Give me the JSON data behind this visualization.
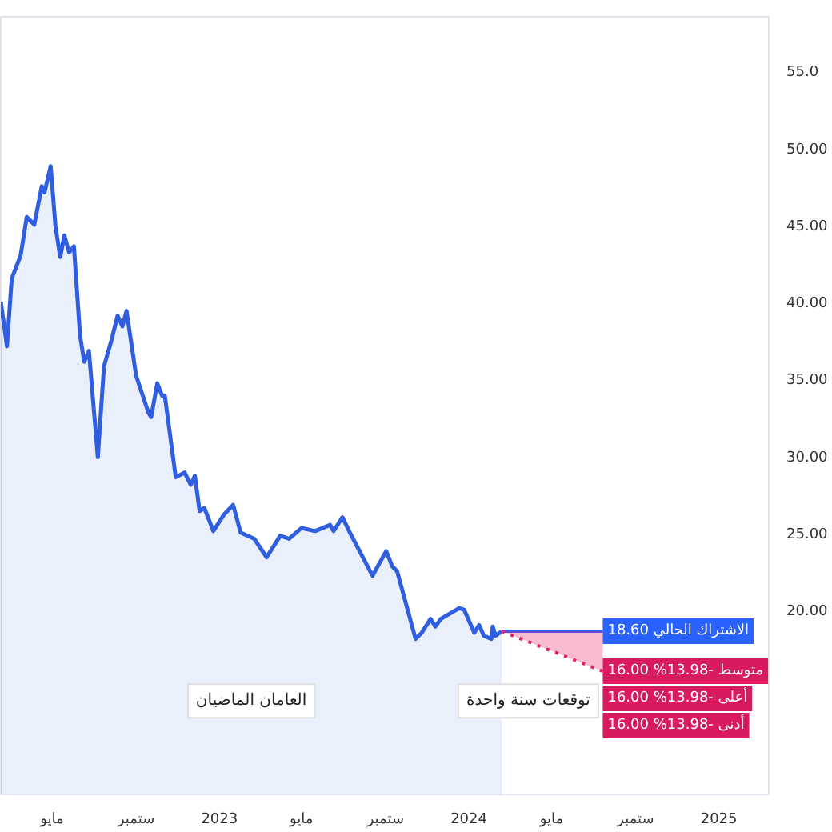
{
  "chart_data": {
    "type": "area",
    "x": [
      "2022-02-15",
      "2022-02-24",
      "2022-03-03",
      "2022-03-16",
      "2022-03-25",
      "2022-04-05",
      "2022-04-16",
      "2022-04-20",
      "2022-04-29",
      "2022-05-06",
      "2022-05-13",
      "2022-05-19",
      "2022-05-26",
      "2022-06-02",
      "2022-06-11",
      "2022-06-17",
      "2022-06-24",
      "2022-07-07",
      "2022-07-16",
      "2022-07-27",
      "2022-08-05",
      "2022-08-12",
      "2022-08-18",
      "2022-09-01",
      "2022-09-19",
      "2022-09-23",
      "2022-10-02",
      "2022-10-09",
      "2022-10-13",
      "2022-10-29",
      "2022-11-11",
      "2022-11-20",
      "2022-11-26",
      "2022-12-03",
      "2022-12-10",
      "2022-12-23",
      "2023-01-08",
      "2023-01-21",
      "2023-02-01",
      "2023-02-21",
      "2023-03-11",
      "2023-03-31",
      "2023-04-13",
      "2023-05-01",
      "2023-05-21",
      "2023-06-12",
      "2023-06-17",
      "2023-06-30",
      "2023-07-11",
      "2023-08-13",
      "2023-09-02",
      "2023-09-11",
      "2023-09-18",
      "2023-10-15",
      "2023-10-24",
      "2023-11-06",
      "2023-11-13",
      "2023-11-21",
      "2023-12-18",
      "2023-12-25",
      "2024-01-09",
      "2024-01-16",
      "2024-01-23",
      "2024-02-03",
      "2024-02-05",
      "2024-02-09",
      "2024-02-18"
    ],
    "series": [
      {
        "color": "#2f5fe0",
        "values": [
          40.0,
          37.1,
          41.5,
          43.0,
          45.5,
          45.0,
          47.5,
          47.1,
          48.8,
          44.9,
          42.9,
          44.3,
          43.2,
          43.6,
          37.8,
          36.1,
          36.8,
          29.9,
          35.8,
          37.5,
          39.1,
          38.4,
          39.4,
          35.2,
          32.8,
          32.5,
          34.7,
          33.9,
          33.9,
          28.6,
          28.9,
          28.1,
          28.7,
          26.4,
          26.6,
          25.1,
          26.2,
          26.8,
          25.0,
          24.6,
          23.4,
          24.8,
          24.6,
          25.3,
          25.1,
          25.5,
          25.1,
          26.0,
          25.0,
          22.2,
          23.8,
          22.8,
          22.5,
          18.1,
          18.5,
          19.4,
          18.9,
          19.4,
          20.1,
          20.0,
          18.5,
          19.0,
          18.3,
          18.1,
          18.9,
          18.3,
          18.6
        ]
      },
      {
        "type": "line",
        "color": "#2962ff",
        "x": [
          "2024-02-18",
          "2024-07-15"
        ],
        "values": [
          18.6,
          18.6
        ]
      },
      {
        "type": "line",
        "color": "#e91e63",
        "line_style": "dotted",
        "x": [
          "2024-02-18",
          "2024-07-15"
        ],
        "values": [
          18.6,
          16.0
        ],
        "lower": [
          18.6,
          16.0
        ],
        "upper": [
          18.6,
          18.6
        ]
      }
    ],
    "xlim": [
      "2022-02-15",
      "2025-03-15"
    ],
    "xticks": [
      {
        "value": "2022-05-01",
        "label": "مايو"
      },
      {
        "value": "2022-09-01",
        "label": "ستمبر"
      },
      {
        "value": "2023-01-01",
        "label": "2023"
      },
      {
        "value": "2023-05-01",
        "label": "مايو"
      },
      {
        "value": "2023-09-01",
        "label": "ستمبر"
      },
      {
        "value": "2024-01-01",
        "label": "2024"
      },
      {
        "value": "2024-05-01",
        "label": "مايو"
      },
      {
        "value": "2024-09-01",
        "label": "ستمبر"
      },
      {
        "value": "2025-01-01",
        "label": "2025"
      }
    ],
    "ylim": [
      8,
      58.5
    ],
    "yticks": [
      {
        "value": 20,
        "label": "20.00"
      },
      {
        "value": 25,
        "label": "25.00"
      },
      {
        "value": 30,
        "label": "30.00"
      },
      {
        "value": 35,
        "label": "35.00"
      },
      {
        "value": 40,
        "label": "40.00"
      },
      {
        "value": 45,
        "label": "45.00"
      },
      {
        "value": 50,
        "label": "50.00"
      },
      {
        "value": 55,
        "label": "55.0"
      }
    ],
    "annotations": [
      {
        "text": "الاشتراك الحالي 18.60",
        "x": "2024-07-15",
        "y": 18.6
      },
      {
        "text": "متوسط -13.98% 16.00",
        "x": "2024-07-15",
        "y": 16.0
      },
      "العامان الماضيان",
      "توقعات سنة واحدة",
      "أعلى -13.98% 16.00",
      "أدنى -13.98% 16.00"
    ],
    "grid": false
  }
}
